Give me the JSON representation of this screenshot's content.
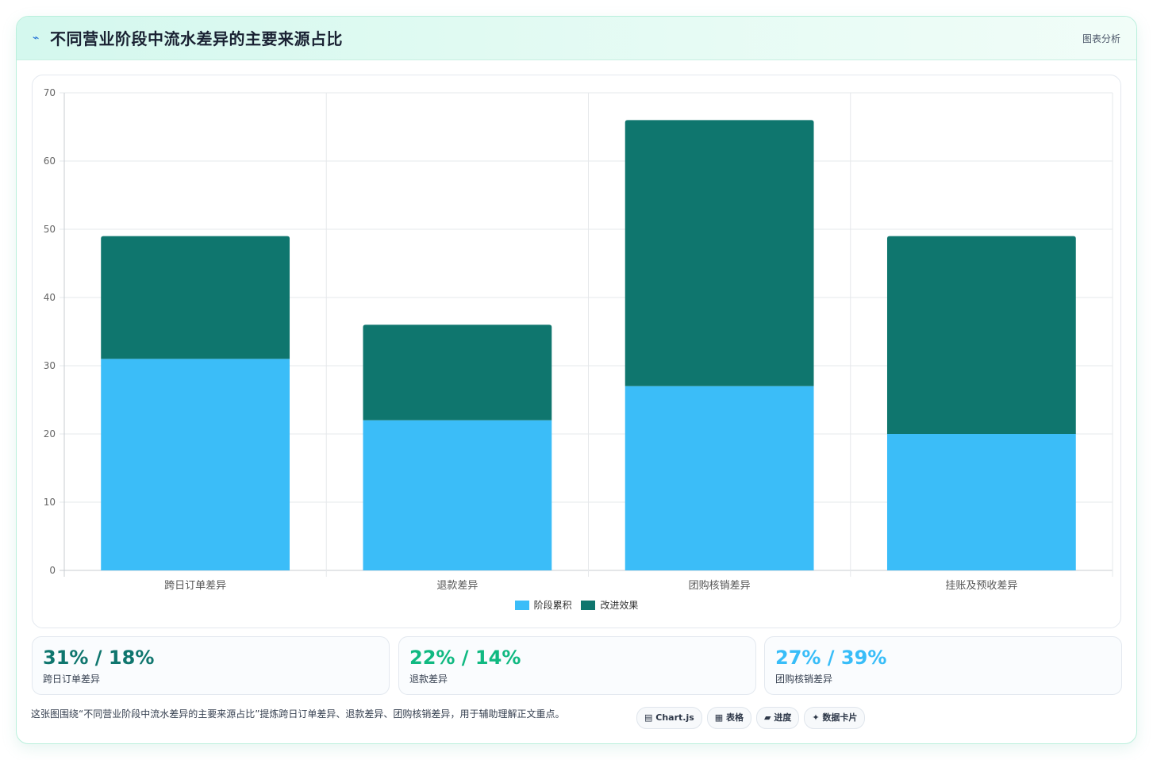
{
  "header": {
    "icon": "chart-spark-icon",
    "title": "不同营业阶段中流水差异的主要来源占比",
    "right_label": "图表分析"
  },
  "chart_data": {
    "type": "bar",
    "stacked": true,
    "categories": [
      "跨日订单差异",
      "退款差异",
      "团购核销差异",
      "挂账及预收差异"
    ],
    "series": [
      {
        "name": "阶段累积",
        "values": [
          31,
          22,
          27,
          20
        ],
        "color": "#3bbdf8"
      },
      {
        "name": "改进效果",
        "values": [
          18,
          14,
          39,
          29
        ],
        "color": "#0f766e"
      }
    ],
    "ylim": [
      0,
      70
    ],
    "yticks": [
      0,
      10,
      20,
      30,
      40,
      50,
      60,
      70
    ],
    "grid": true,
    "legend_position": "bottom"
  },
  "stats": [
    {
      "value": "31% / 18%",
      "label": "跨日订单差异",
      "color": "#0f766e"
    },
    {
      "value": "22% / 14%",
      "label": "退款差异",
      "color": "#10b981"
    },
    {
      "value": "27% / 39%",
      "label": "团购核销差异",
      "color": "#38bdf8"
    }
  ],
  "footer": {
    "text": "这张图围绕“不同营业阶段中流水差异的主要来源占比”提炼跨日订单差异、退款差异、团购核销差异，用于辅助理解正文重点。",
    "tags": [
      {
        "icon": "chart-icon",
        "glyph": "▤",
        "label": "Chart.js"
      },
      {
        "icon": "table-icon",
        "glyph": "▦",
        "label": "表格"
      },
      {
        "icon": "progress-icon",
        "glyph": "▰",
        "label": "进度"
      },
      {
        "icon": "sparkle-icon",
        "glyph": "✦",
        "label": "数据卡片"
      }
    ]
  }
}
